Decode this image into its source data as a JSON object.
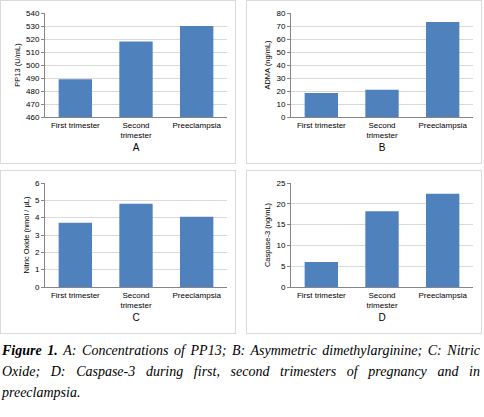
{
  "chart_data": [
    {
      "type": "bar",
      "categories": [
        "First trimester",
        "Second trimester",
        "Preeclampsia"
      ],
      "values": [
        489,
        518,
        530
      ],
      "color": "#4f81bd",
      "ylabel": "PP13 (U/mL)",
      "xlabel": "A",
      "ylim": [
        460,
        540
      ],
      "yticks": [
        460,
        470,
        480,
        490,
        500,
        510,
        520,
        530,
        540
      ],
      "grid": true
    },
    {
      "type": "bar",
      "categories": [
        "First trimester",
        "Second trimester",
        "Preeclampsia"
      ],
      "values": [
        18.5,
        21,
        73
      ],
      "color": "#4f81bd",
      "ylabel": "ADMA (ng/mL)",
      "xlabel": "B",
      "ylim": [
        0,
        80
      ],
      "yticks": [
        0,
        10,
        20,
        30,
        40,
        50,
        60,
        70,
        80
      ],
      "grid": true
    },
    {
      "type": "bar",
      "categories": [
        "First trimester",
        "Second trimester",
        "Preeclampsia"
      ],
      "values": [
        3.7,
        4.8,
        4.05
      ],
      "color": "#4f81bd",
      "ylabel": "Nitric Oxide (nmol / µL)",
      "xlabel": "C",
      "ylim": [
        0,
        6
      ],
      "yticks": [
        0,
        1,
        2,
        3,
        4,
        5,
        6
      ],
      "grid": true
    },
    {
      "type": "bar",
      "categories": [
        "First trimester",
        "Second trimester",
        "Preeclampsia"
      ],
      "values": [
        6,
        18.2,
        22.4
      ],
      "color": "#4f81bd",
      "ylabel": "Caspase-3 (ng/mL)",
      "xlabel": "D",
      "ylim": [
        0,
        25
      ],
      "yticks": [
        0,
        5,
        10,
        15,
        20,
        25
      ],
      "grid": true
    }
  ],
  "caption": {
    "label": "Figure 1.",
    "text": "A: Concentrations of PP13; B: Asymmetric dimethylarginine; C: Nitric Oxide; D: Caspase-3 during first, second trimesters of pregnancy and in preeclampsia."
  }
}
